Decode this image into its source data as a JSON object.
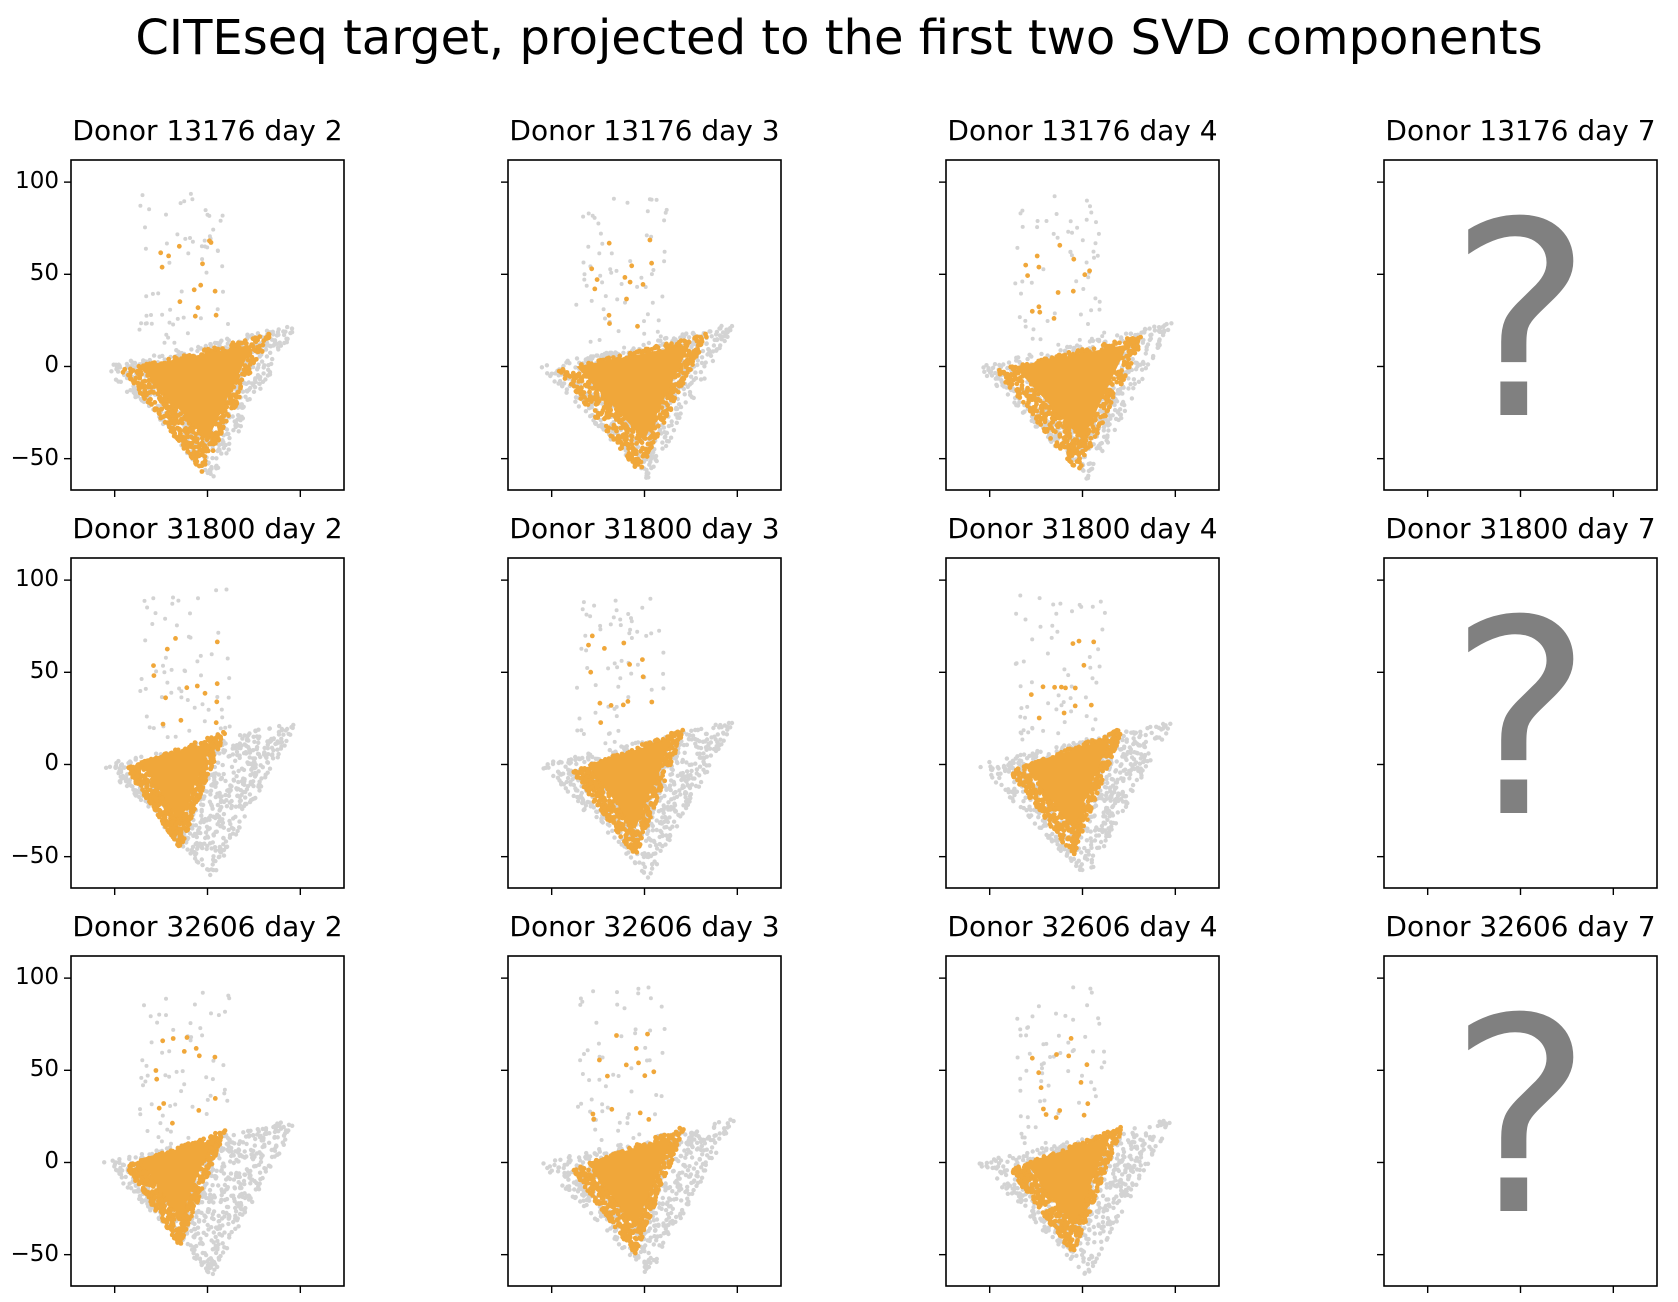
{
  "figure": {
    "title": "CITEseq target, projected to the first two SVD components",
    "colors": {
      "background_points": "#d3d3d3",
      "highlight_points": "#f0a73a",
      "question_mark": "#808080",
      "axes": "#000000"
    },
    "placeholder_symbol": "?"
  },
  "chart_data": [
    {
      "type": "scatter",
      "title": "Donor 13176 day 2",
      "ylim": [
        -67,
        112
      ],
      "yticks": [
        "100",
        "50",
        "0",
        "−50"
      ],
      "highlight_shape": "broad",
      "has_data": true
    },
    {
      "type": "scatter",
      "title": "Donor 13176 day 3",
      "ylim": [
        -67,
        112
      ],
      "highlight_shape": "broad",
      "has_data": true
    },
    {
      "type": "scatter",
      "title": "Donor 13176 day 4",
      "ylim": [
        -67,
        112
      ],
      "highlight_shape": "broad",
      "has_data": true
    },
    {
      "type": "scatter",
      "title": "Donor 13176 day 7",
      "ylim": [
        -67,
        112
      ],
      "has_data": false
    },
    {
      "type": "scatter",
      "title": "Donor 31800 day 2",
      "ylim": [
        -67,
        112
      ],
      "yticks": [
        "100",
        "50",
        "0",
        "−50"
      ],
      "highlight_shape": "narrow",
      "has_data": true
    },
    {
      "type": "scatter",
      "title": "Donor 31800 day 3",
      "ylim": [
        -67,
        112
      ],
      "highlight_shape": "mid",
      "has_data": true
    },
    {
      "type": "scatter",
      "title": "Donor 31800 day 4",
      "ylim": [
        -67,
        112
      ],
      "highlight_shape": "mid",
      "has_data": true
    },
    {
      "type": "scatter",
      "title": "Donor 31800 day 7",
      "ylim": [
        -67,
        112
      ],
      "has_data": false
    },
    {
      "type": "scatter",
      "title": "Donor 32606 day 2",
      "ylim": [
        -67,
        112
      ],
      "yticks": [
        "100",
        "50",
        "0",
        "−50"
      ],
      "highlight_shape": "narrow",
      "has_data": true
    },
    {
      "type": "scatter",
      "title": "Donor 32606 day 3",
      "ylim": [
        -67,
        112
      ],
      "highlight_shape": "mid",
      "has_data": true
    },
    {
      "type": "scatter",
      "title": "Donor 32606 day 4",
      "ylim": [
        -67,
        112
      ],
      "highlight_shape": "mid",
      "has_data": true
    },
    {
      "type": "scatter",
      "title": "Donor 32606 day 7",
      "ylim": [
        -67,
        112
      ],
      "has_data": false
    }
  ]
}
